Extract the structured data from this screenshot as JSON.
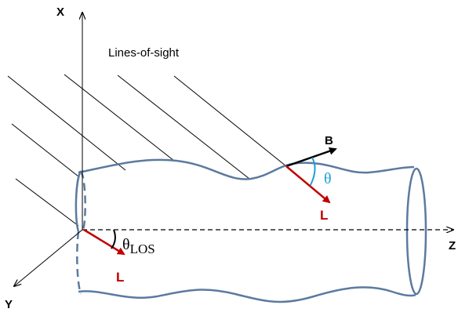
{
  "axes": {
    "x": "X",
    "y": "Y",
    "z": "Z"
  },
  "annotation": "Lines-of-sight",
  "vectors": {
    "b": "B",
    "l_top": "L",
    "l_bottom": "L"
  },
  "angles": {
    "theta": "θ",
    "theta_los": {
      "symbol": "θ",
      "subscript": "LOS"
    }
  }
}
